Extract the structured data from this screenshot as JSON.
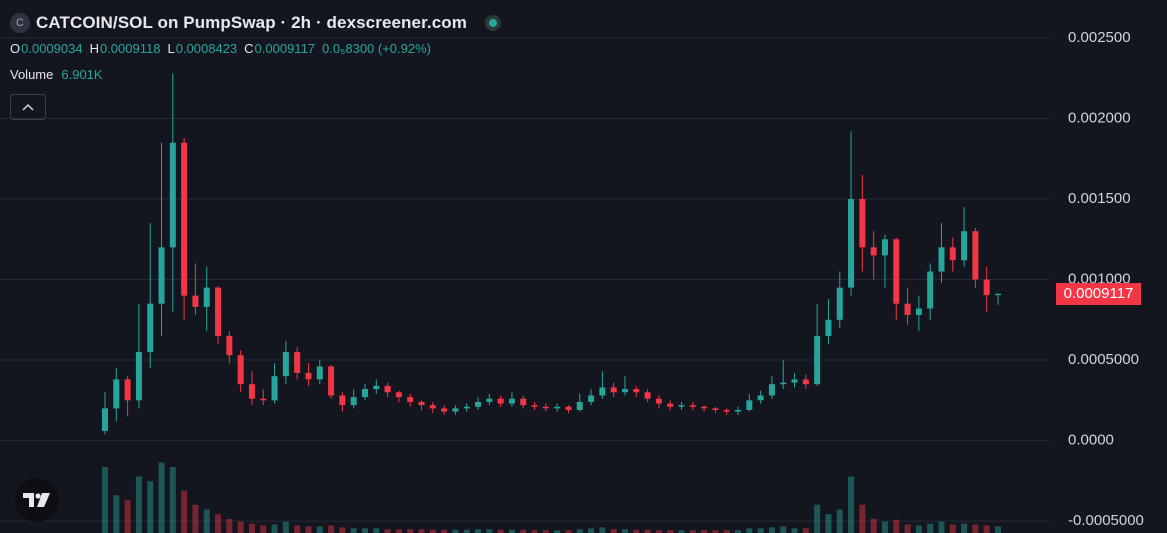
{
  "chart_data": {
    "type": "candlestick",
    "title": "CATCOIN/SOL on PumpSwap · 2h · dexscreener.com",
    "logo_letter": "C",
    "ohlc_legend": [
      {
        "key": "O",
        "value": "0.0009034"
      },
      {
        "key": "H",
        "value": "0.0009118"
      },
      {
        "key": "L",
        "value": "0.0008423"
      },
      {
        "key": "C",
        "value": "0.0009117"
      }
    ],
    "change": "0.0₅8300 (+0.92%)",
    "volume_label": "Volume",
    "volume_value": "6.901K",
    "up_color": "#26a69a",
    "down_color": "#f23645",
    "grid": true,
    "ylim": [
      -0.000574,
      0.002736
    ],
    "yticks": [
      {
        "value": 0.0025,
        "label": "0.002500"
      },
      {
        "value": 0.002,
        "label": "0.002000"
      },
      {
        "value": 0.0015,
        "label": "0.001500"
      },
      {
        "value": 0.001,
        "label": "0.001000"
      },
      {
        "value": 0.0005,
        "label": "0.0005000"
      },
      {
        "value": 0,
        "label": "0.0000"
      },
      {
        "value": -0.0005,
        "label": "-0.0005000"
      }
    ],
    "open": [
      6e-05,
      0.0002,
      0.00038,
      0.00025,
      0.00055,
      0.00085,
      0.0012,
      0.00185,
      0.0009,
      0.00083,
      0.00095,
      0.00065,
      0.00053,
      0.00035,
      0.00026,
      0.00025,
      0.0004,
      0.00055,
      0.00042,
      0.00038,
      0.00046,
      0.00028,
      0.00022,
      0.00027,
      0.00032,
      0.00034,
      0.0003,
      0.00027,
      0.00024,
      0.00022,
      0.0002,
      0.00018,
      0.0002,
      0.00021,
      0.00024,
      0.00026,
      0.00023,
      0.00026,
      0.00022,
      0.00021,
      0.0002,
      0.00021,
      0.00019,
      0.00024,
      0.00028,
      0.00033,
      0.0003,
      0.00032,
      0.0003,
      0.00026,
      0.00023,
      0.00021,
      0.00022,
      0.00021,
      0.0002,
      0.00019,
      0.00018,
      0.00019,
      0.00025,
      0.00028,
      0.00035,
      0.00036,
      0.00038,
      0.00035,
      0.00065,
      0.00075,
      0.00095,
      0.0015,
      0.0012,
      0.00115,
      0.00125,
      0.00085,
      0.00078,
      0.00082,
      0.00105,
      0.0012,
      0.00112,
      0.0013,
      0.001,
      0.0009034
    ],
    "high": [
      0.0003,
      0.00045,
      0.0004,
      0.00085,
      0.00135,
      0.00185,
      0.00228,
      0.00188,
      0.0011,
      0.00108,
      0.00096,
      0.00068,
      0.00056,
      0.00043,
      0.00032,
      0.00048,
      0.00062,
      0.00058,
      0.00048,
      0.0005,
      0.00047,
      0.0003,
      0.00032,
      0.00035,
      0.00038,
      0.00036,
      0.00031,
      0.00029,
      0.00025,
      0.00024,
      0.00022,
      0.00022,
      0.00023,
      0.00027,
      0.00029,
      0.00028,
      0.0003,
      0.00028,
      0.00024,
      0.00023,
      0.00023,
      0.00022,
      0.00029,
      0.00032,
      0.00043,
      0.00036,
      0.0004,
      0.00034,
      0.00032,
      0.00028,
      0.00025,
      0.00024,
      0.00024,
      0.00022,
      0.00021,
      0.0002,
      0.00021,
      0.00029,
      0.00031,
      0.0004,
      0.0005,
      0.00042,
      0.00041,
      0.00085,
      0.00088,
      0.00105,
      0.00192,
      0.00165,
      0.0013,
      0.00128,
      0.00126,
      0.00095,
      0.0009,
      0.0011,
      0.00135,
      0.00126,
      0.00145,
      0.00132,
      0.00108,
      0.0009118
    ],
    "low": [
      4e-05,
      0.00012,
      0.00015,
      0.0002,
      0.00045,
      0.00065,
      0.0008,
      0.00075,
      0.00078,
      0.00068,
      0.0006,
      0.00048,
      0.0003,
      0.00022,
      0.00022,
      0.00023,
      0.00035,
      0.00038,
      0.00034,
      0.00035,
      0.00026,
      0.00018,
      0.0002,
      0.00025,
      0.00029,
      0.00027,
      0.00024,
      0.00021,
      0.00019,
      0.00017,
      0.00016,
      0.00016,
      0.00018,
      0.00019,
      0.00022,
      0.00021,
      0.00021,
      0.0002,
      0.00019,
      0.00018,
      0.00018,
      0.00017,
      0.00018,
      0.00022,
      0.00026,
      0.00027,
      0.00028,
      0.00027,
      0.00024,
      0.0002,
      0.00019,
      0.00019,
      0.00019,
      0.00018,
      0.00017,
      0.00016,
      0.00016,
      0.00018,
      0.00023,
      0.00026,
      0.00032,
      0.00033,
      0.00032,
      0.00034,
      0.0006,
      0.0007,
      0.0009,
      0.00105,
      0.001,
      0.00095,
      0.00075,
      0.00072,
      0.00068,
      0.00075,
      0.00098,
      0.00105,
      0.00108,
      0.00095,
      0.0008,
      0.0008423
    ],
    "close": [
      0.0002,
      0.00038,
      0.00025,
      0.00055,
      0.00085,
      0.0012,
      0.00185,
      0.0009,
      0.00083,
      0.00095,
      0.00065,
      0.00053,
      0.00035,
      0.00026,
      0.00025,
      0.0004,
      0.00055,
      0.00042,
      0.00038,
      0.00046,
      0.00028,
      0.00022,
      0.00027,
      0.00032,
      0.00034,
      0.0003,
      0.00027,
      0.00024,
      0.00022,
      0.0002,
      0.00018,
      0.0002,
      0.00021,
      0.00024,
      0.00026,
      0.00023,
      0.00026,
      0.00022,
      0.00021,
      0.0002,
      0.00021,
      0.00019,
      0.00024,
      0.00028,
      0.00033,
      0.0003,
      0.00032,
      0.0003,
      0.00026,
      0.00023,
      0.00021,
      0.00022,
      0.00021,
      0.0002,
      0.00019,
      0.00018,
      0.00019,
      0.00025,
      0.00028,
      0.00035,
      0.00036,
      0.00038,
      0.00035,
      0.00065,
      0.00075,
      0.00095,
      0.0015,
      0.0012,
      0.00115,
      0.00125,
      0.00085,
      0.00078,
      0.00082,
      0.00105,
      0.0012,
      0.00112,
      0.0013,
      0.001,
      0.0009034,
      0.0009117
    ],
    "volume_ylim": [
      0,
      85000
    ],
    "volume": [
      70000,
      40000,
      35000,
      60000,
      55000,
      75000,
      70000,
      45000,
      30000,
      25000,
      20000,
      15000,
      12000,
      10000,
      8000,
      9000,
      12000,
      8000,
      7000,
      7000,
      8000,
      6000,
      5000,
      5000,
      5000,
      4000,
      4000,
      4000,
      4000,
      3500,
      3500,
      3500,
      3500,
      4000,
      4000,
      3500,
      3500,
      3500,
      3000,
      3000,
      3000,
      3000,
      4000,
      5000,
      6000,
      4000,
      4000,
      3500,
      3500,
      3000,
      3000,
      3000,
      3000,
      3000,
      3000,
      3000,
      3000,
      5000,
      5000,
      6000,
      7000,
      5000,
      5000,
      30000,
      20000,
      25000,
      60000,
      30000,
      15000,
      12000,
      14000,
      9000,
      8000,
      10000,
      12000,
      9000,
      10000,
      9000,
      8000,
      6901
    ]
  }
}
